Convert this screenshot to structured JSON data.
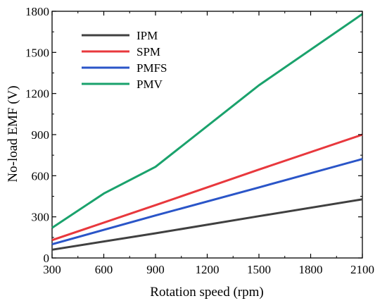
{
  "chart_data": {
    "type": "line",
    "title": "",
    "xlabel": "Rotation speed (rpm)",
    "ylabel": "No-load EMF (V)",
    "xlim": [
      300,
      2100
    ],
    "ylim": [
      0,
      1800
    ],
    "x_ticks": [
      300,
      600,
      900,
      1200,
      1500,
      1800,
      2100
    ],
    "y_ticks": [
      0,
      300,
      600,
      900,
      1200,
      1500,
      1800
    ],
    "x_tick_labels": [
      "300",
      "600",
      "900",
      "1200",
      "1500",
      "1800",
      "2100"
    ],
    "y_tick_labels": [
      "0",
      "300",
      "600",
      "900",
      "1200",
      "1500",
      "1800"
    ],
    "grid": false,
    "legend_position": "top-left",
    "series": [
      {
        "name": "IPM",
        "color": "#404040",
        "points": [
          [
            300,
            60
          ],
          [
            900,
            180
          ],
          [
            1500,
            305
          ],
          [
            2100,
            428
          ]
        ]
      },
      {
        "name": "SPM",
        "color": "#e8383d",
        "points": [
          [
            300,
            130
          ],
          [
            900,
            385
          ],
          [
            1500,
            645
          ],
          [
            2100,
            900
          ]
        ]
      },
      {
        "name": "PMFS",
        "color": "#2a55c8",
        "points": [
          [
            300,
            100
          ],
          [
            900,
            310
          ],
          [
            1500,
            515
          ],
          [
            2100,
            722
          ]
        ]
      },
      {
        "name": "PMV",
        "color": "#1aa26c",
        "points": [
          [
            300,
            220
          ],
          [
            600,
            470
          ],
          [
            900,
            665
          ],
          [
            1500,
            1260
          ],
          [
            2100,
            1780
          ]
        ]
      }
    ]
  }
}
